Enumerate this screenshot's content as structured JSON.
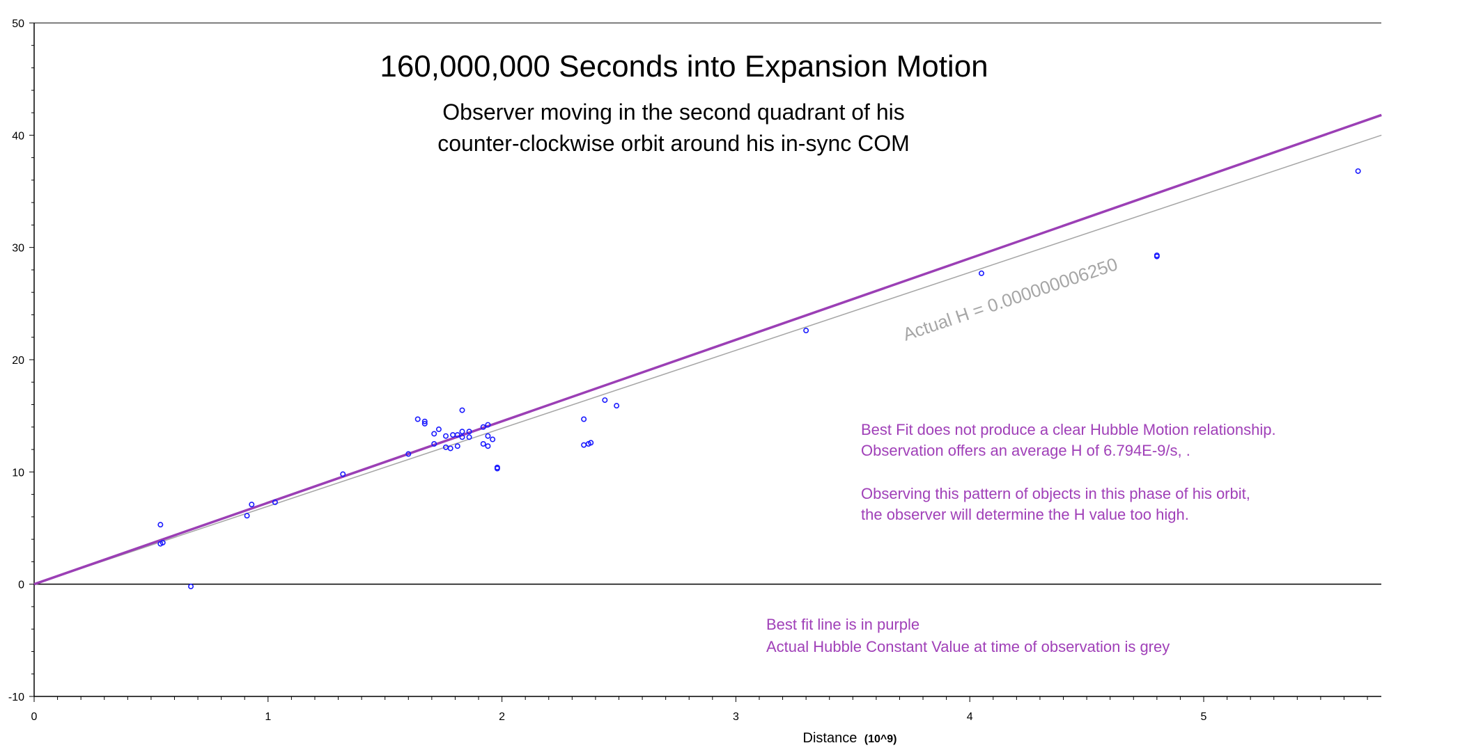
{
  "chart_data": {
    "type": "scatter",
    "title": "160,000,000 Seconds into Expansion Motion",
    "subtitle_lines": [
      "Observer moving in the second quadrant of his",
      "counter-clockwise orbit around his in-sync COM"
    ],
    "xlabel": "Distance",
    "xlabel_unit": "(10^9)",
    "ylabel": "",
    "xlim": [
      0,
      5.76
    ],
    "ylim": [
      -10,
      50
    ],
    "x_ticks": [
      0,
      1,
      2,
      3,
      4,
      5
    ],
    "x_tick_labels": [
      "0",
      "1",
      "2",
      "3",
      "4",
      "5"
    ],
    "y_ticks": [
      -10,
      0,
      10,
      20,
      30,
      40,
      50
    ],
    "y_tick_labels": [
      "-10",
      "0",
      "10",
      "20",
      "30",
      "40",
      "50"
    ],
    "x_minor_step": 0.1,
    "y_minor_step": 2,
    "points": [
      {
        "x": 0.54,
        "y": 5.3
      },
      {
        "x": 0.54,
        "y": 3.6
      },
      {
        "x": 0.55,
        "y": 3.7
      },
      {
        "x": 0.67,
        "y": -0.2
      },
      {
        "x": 0.91,
        "y": 6.1
      },
      {
        "x": 0.93,
        "y": 7.1
      },
      {
        "x": 1.03,
        "y": 7.3
      },
      {
        "x": 1.32,
        "y": 9.8
      },
      {
        "x": 1.6,
        "y": 11.6
      },
      {
        "x": 1.64,
        "y": 14.7
      },
      {
        "x": 1.67,
        "y": 14.5
      },
      {
        "x": 1.67,
        "y": 14.3
      },
      {
        "x": 1.71,
        "y": 13.4
      },
      {
        "x": 1.71,
        "y": 12.5
      },
      {
        "x": 1.73,
        "y": 13.8
      },
      {
        "x": 1.76,
        "y": 13.2
      },
      {
        "x": 1.76,
        "y": 12.2
      },
      {
        "x": 1.78,
        "y": 12.1
      },
      {
        "x": 1.79,
        "y": 13.3
      },
      {
        "x": 1.81,
        "y": 13.3
      },
      {
        "x": 1.81,
        "y": 12.3
      },
      {
        "x": 1.83,
        "y": 13.6
      },
      {
        "x": 1.83,
        "y": 13.1
      },
      {
        "x": 1.83,
        "y": 15.5
      },
      {
        "x": 1.86,
        "y": 13.1
      },
      {
        "x": 1.86,
        "y": 13.6
      },
      {
        "x": 1.92,
        "y": 14.0
      },
      {
        "x": 1.92,
        "y": 12.5
      },
      {
        "x": 1.94,
        "y": 14.2
      },
      {
        "x": 1.94,
        "y": 13.2
      },
      {
        "x": 1.94,
        "y": 12.3
      },
      {
        "x": 1.96,
        "y": 12.9
      },
      {
        "x": 1.98,
        "y": 10.3
      },
      {
        "x": 1.98,
        "y": 10.4
      },
      {
        "x": 2.35,
        "y": 14.7
      },
      {
        "x": 2.35,
        "y": 12.4
      },
      {
        "x": 2.37,
        "y": 12.5
      },
      {
        "x": 2.38,
        "y": 12.6
      },
      {
        "x": 2.44,
        "y": 16.4
      },
      {
        "x": 2.49,
        "y": 15.9
      },
      {
        "x": 3.3,
        "y": 22.6
      },
      {
        "x": 4.05,
        "y": 27.7
      },
      {
        "x": 4.8,
        "y": 29.2
      },
      {
        "x": 4.8,
        "y": 29.3
      },
      {
        "x": 5.66,
        "y": 36.8
      }
    ],
    "best_fit_line": {
      "name": "Best fit",
      "color": "#9b3fb5",
      "x": [
        0,
        5.76
      ],
      "y": [
        0,
        41.8
      ]
    },
    "actual_line": {
      "name": "Actual Hubble Constant",
      "color": "#a6a6a6",
      "x": [
        0,
        5.76
      ],
      "y": [
        0,
        40.0
      ]
    },
    "actual_label": "Actual H = 0.000000006250",
    "annotations": [
      "Best Fit does not produce a clear Hubble Motion relationship.",
      "Observation offers an average H of  6.794E-9/s, .",
      "Observing this pattern of objects in this phase of his orbit,",
      "the observer will determine the H value too high.",
      "Best fit line is in purple",
      "Actual Hubble Constant Value at time of observation is grey"
    ],
    "colors": {
      "points": "#1a1aff",
      "axes": "#000000",
      "text": "#000000",
      "note": "#a040b8"
    }
  }
}
